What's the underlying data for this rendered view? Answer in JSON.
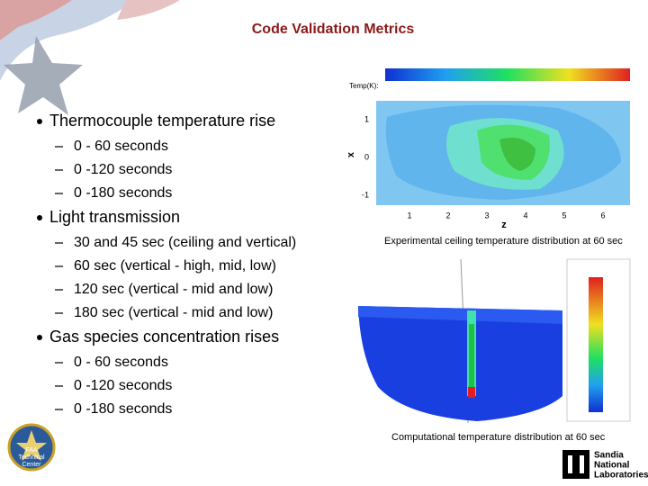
{
  "header": {
    "title": "Code Validation Metrics"
  },
  "bullets": [
    {
      "text": "Thermocouple temperature rise",
      "items": [
        "0 - 60 seconds",
        "0 -120 seconds",
        "0 -180 seconds"
      ]
    },
    {
      "text": "Light transmission",
      "items": [
        "30 and 45 sec (ceiling and vertical)",
        "60 sec (vertical - high, mid, low)",
        "120 sec (vertical - mid and low)",
        "180 sec (vertical - mid and low)"
      ]
    },
    {
      "text": "Gas species concentration rises",
      "items": [
        "0 - 60 seconds",
        "0 -120 seconds",
        "0 -180 seconds"
      ]
    }
  ],
  "figures": {
    "experimental": {
      "colorbar_label": "Temp(K):",
      "x_label": "z",
      "y_label": "x",
      "x_ticks": [
        "1",
        "2",
        "3",
        "4",
        "5",
        "6"
      ],
      "y_ticks": [
        "1",
        "0",
        "-1"
      ],
      "caption": "Experimental ceiling temperature distribution at 60 sec"
    },
    "computational": {
      "caption": "Computational temperature distribution at 60 sec"
    }
  },
  "logos": {
    "faa": [
      "FAA",
      "Technical",
      "Center"
    ],
    "sandia": [
      "Sandia",
      "National",
      "Laboratories"
    ]
  }
}
